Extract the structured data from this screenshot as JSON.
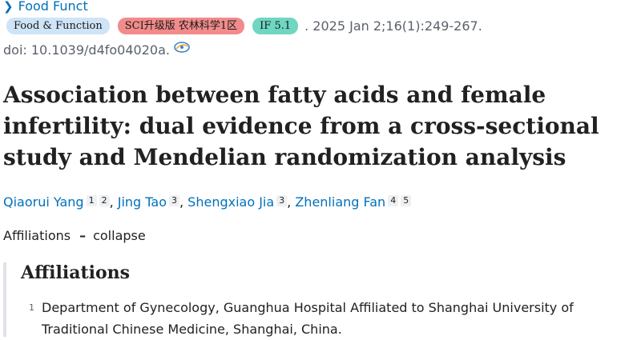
{
  "journal": {
    "name": "Food Funct"
  },
  "badges": [
    {
      "label": "Food & Function",
      "color": "#cfe4f7"
    },
    {
      "label": "SCI升级版 农林科学1区",
      "color": "#f28b8b"
    },
    {
      "label": "IF 5.1",
      "color": "#6fd6c2"
    }
  ],
  "citation": ". 2025 Jan 2;16(1):249-267.",
  "doi": "doi: 10.1039/d4fo04020a.",
  "title": "Association between fatty acids and female infertility: dual evidence from a cross-sectional study and Mendelian randomization analysis",
  "authors": [
    {
      "name": "Qiaorui Yang",
      "affs": [
        "1",
        "2"
      ]
    },
    {
      "name": "Jing Tao",
      "affs": [
        "3"
      ]
    },
    {
      "name": "Shengxiao Jia",
      "affs": [
        "3"
      ]
    },
    {
      "name": "Zhenliang Fan",
      "affs": [
        "4",
        "5"
      ]
    }
  ],
  "affiliations_toggle": {
    "label": "Affiliations",
    "dash": "–",
    "action": "collapse"
  },
  "affiliations": {
    "heading": "Affiliations",
    "items": [
      {
        "num": "1",
        "text": "Department of Gynecology, Guanghua Hospital Affiliated to Shanghai University of Traditional Chinese Medicine, Shanghai, China."
      }
    ]
  }
}
